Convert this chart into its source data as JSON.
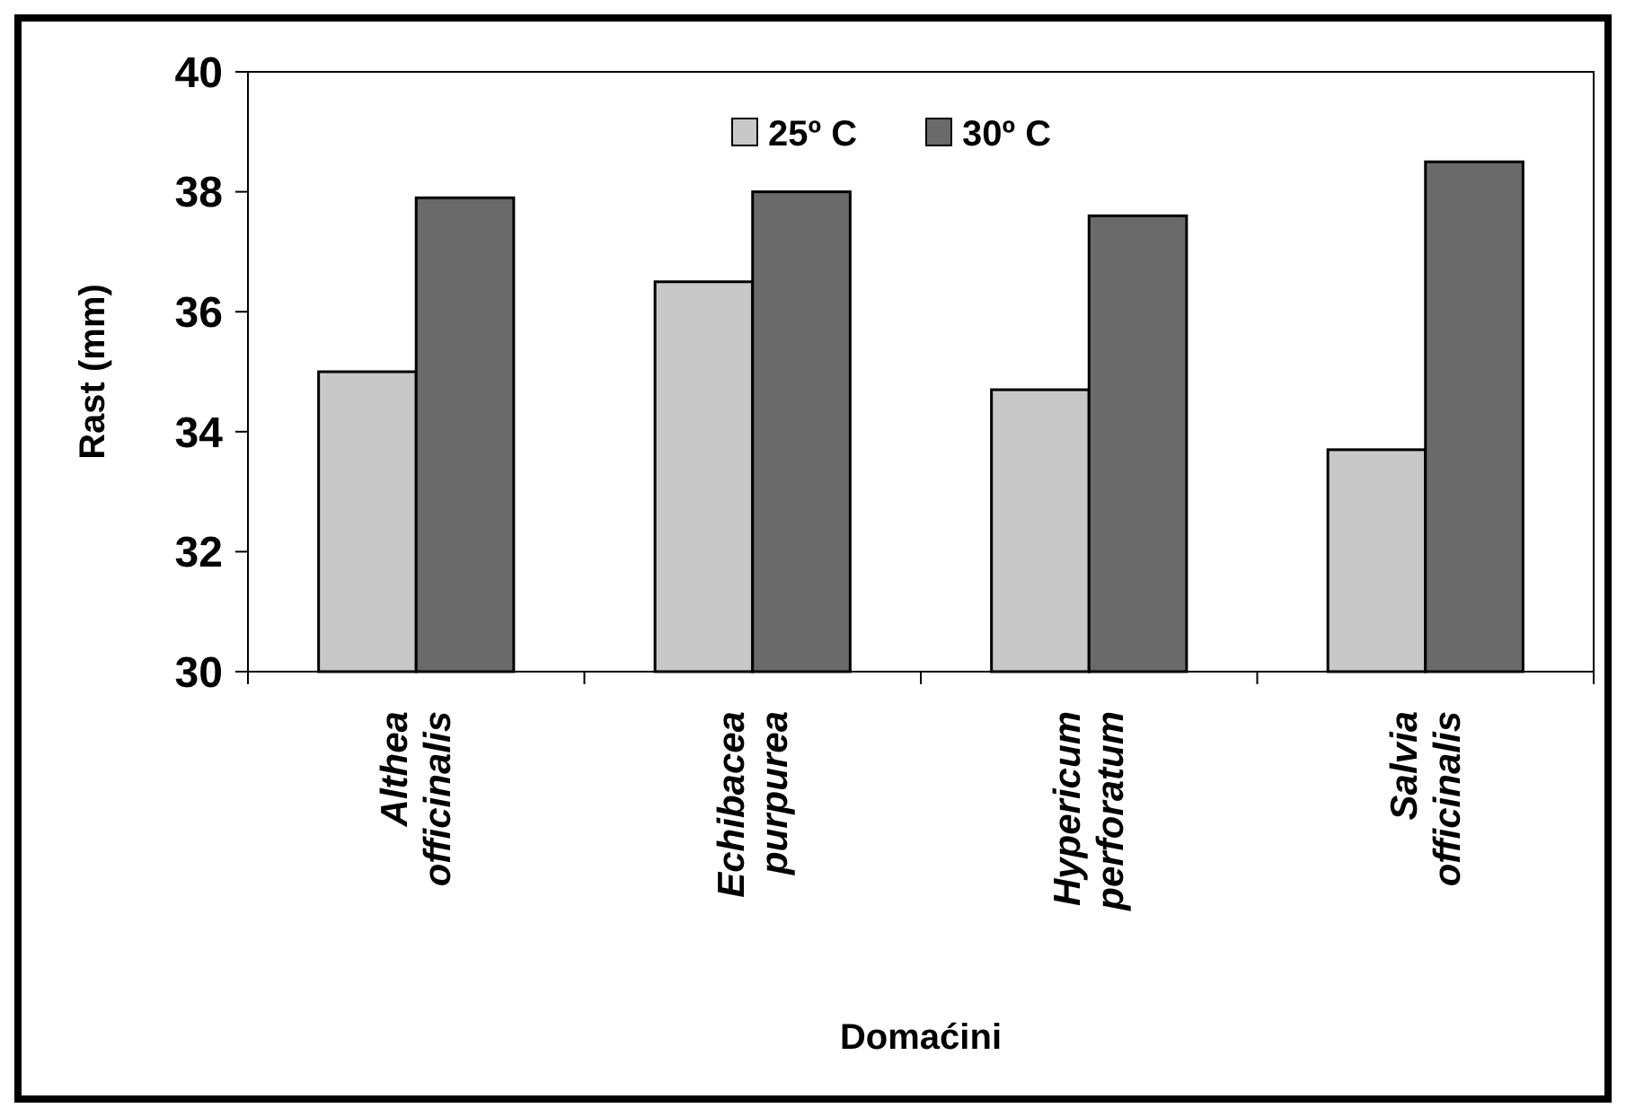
{
  "chart_data": {
    "type": "bar",
    "xlabel": "Domaćini",
    "ylabel": "Rast (mm)",
    "categories": [
      "Althea officinalis",
      "Echibacea purpurea",
      "Hypericum perforatum",
      "Salvia officinalis"
    ],
    "series": [
      {
        "name": "25º C",
        "color": "#c8c8c8",
        "values": [
          35.0,
          36.5,
          34.7,
          33.7
        ]
      },
      {
        "name": "30º C",
        "color": "#6a6a6a",
        "values": [
          37.9,
          38.0,
          37.6,
          38.5
        ]
      }
    ],
    "ylim": [
      30,
      40
    ],
    "yticks": [
      30,
      32,
      34,
      36,
      38,
      40
    ],
    "grid": false,
    "legend": "top"
  }
}
